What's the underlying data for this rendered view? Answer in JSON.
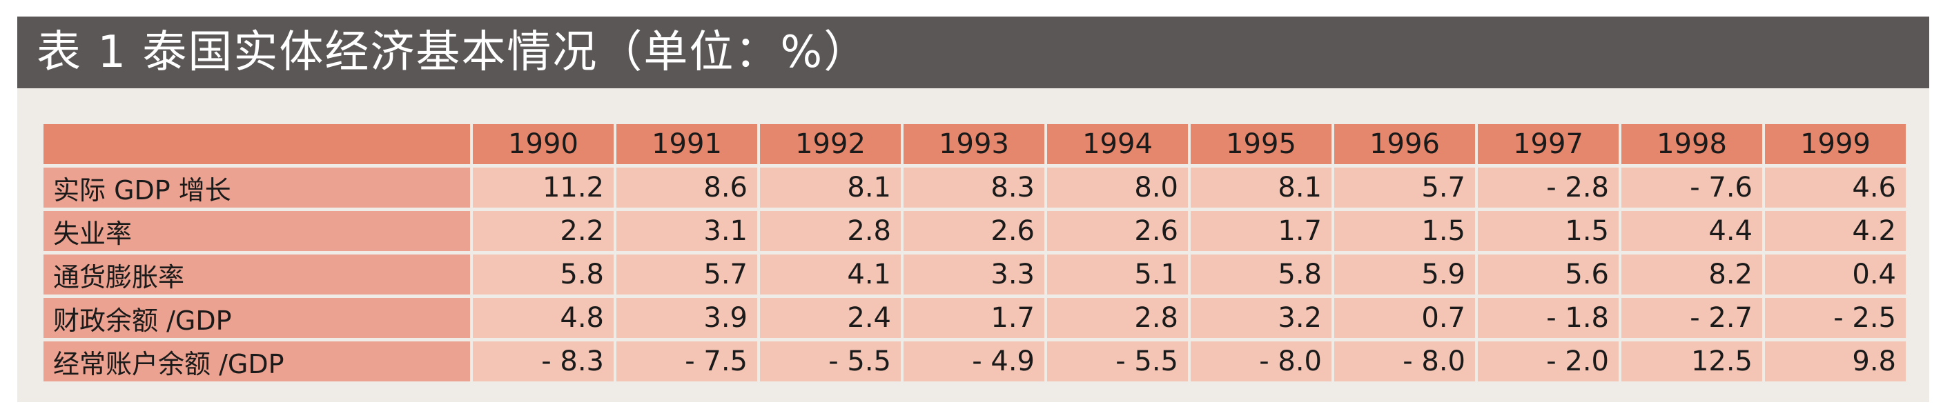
{
  "title": "表 1 泰国实体经济基本情况（单位：%）",
  "table": {
    "columns": [
      "1990",
      "1991",
      "1992",
      "1993",
      "1994",
      "1995",
      "1996",
      "1997",
      "1998",
      "1999"
    ],
    "rows": [
      {
        "label": "实际 GDP 增长",
        "values": [
          "11.2",
          "8.6",
          "8.1",
          "8.3",
          "8.0",
          "8.1",
          "5.7",
          "- 2.8",
          "- 7.6",
          "4.6"
        ]
      },
      {
        "label": "失业率",
        "values": [
          "2.2",
          "3.1",
          "2.8",
          "2.6",
          "2.6",
          "1.7",
          "1.5",
          "1.5",
          "4.4",
          "4.2"
        ]
      },
      {
        "label": "通货膨胀率",
        "values": [
          "5.8",
          "5.7",
          "4.1",
          "3.3",
          "5.1",
          "5.8",
          "5.9",
          "5.6",
          "8.2",
          "0.4"
        ]
      },
      {
        "label": "财政余额 /GDP",
        "values": [
          "4.8",
          "3.9",
          "2.4",
          "1.7",
          "2.8",
          "3.2",
          "0.7",
          "- 1.8",
          "- 2.7",
          "- 2.5"
        ]
      },
      {
        "label": "经常账户余额 /GDP",
        "values": [
          "- 8.3",
          "- 7.5",
          "- 5.5",
          "- 4.9",
          "- 5.5",
          "- 8.0",
          "- 8.0",
          "- 2.0",
          "12.5",
          "9.8"
        ]
      }
    ]
  }
}
